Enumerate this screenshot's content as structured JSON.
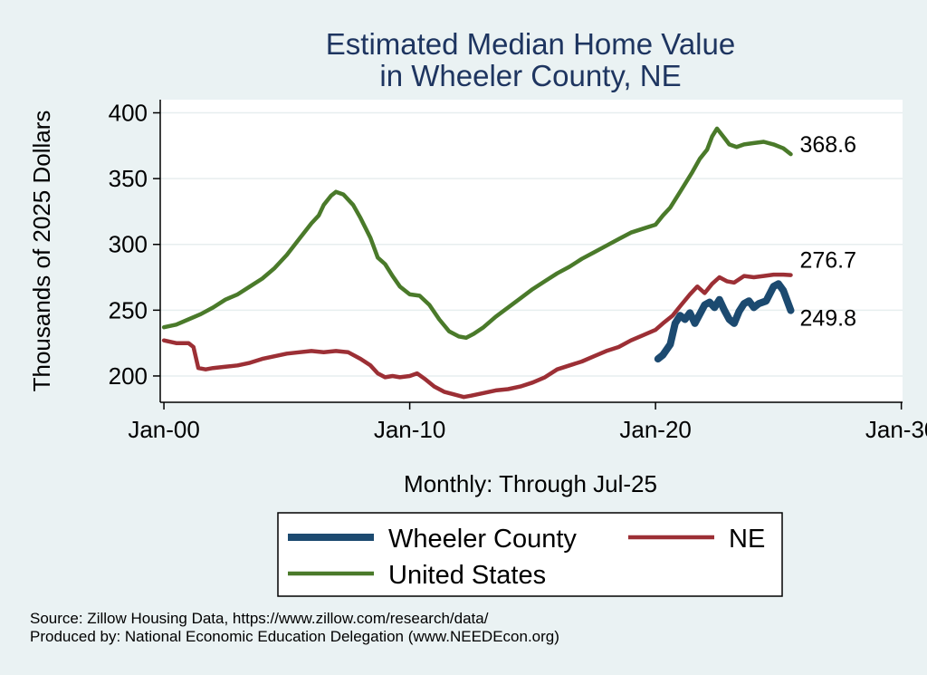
{
  "chart_data": {
    "type": "line",
    "title": [
      "Estimated Median Home Value",
      "in Wheeler County, NE"
    ],
    "ylabel": "Thousands of 2025 Dollars",
    "xlabel": "Monthly: Through Jul-25",
    "ylim": [
      180,
      410
    ],
    "xlim": [
      1999.85,
      2030.05
    ],
    "yticks": [
      200,
      250,
      300,
      350,
      400
    ],
    "xticks": [
      {
        "value": 2000,
        "label": "Jan-00"
      },
      {
        "value": 2010,
        "label": "Jan-10"
      },
      {
        "value": 2020,
        "label": "Jan-20"
      },
      {
        "value": 2030,
        "label": "Jan-30"
      }
    ],
    "grid": true,
    "legend_position": "bottom",
    "series": [
      {
        "name": "United States",
        "color": "#4a7a2a",
        "width": 4.5,
        "end_label": "368.6",
        "points": [
          [
            2000.0,
            237
          ],
          [
            2000.5,
            239
          ],
          [
            2001.0,
            243
          ],
          [
            2001.5,
            247
          ],
          [
            2002.0,
            252
          ],
          [
            2002.5,
            258
          ],
          [
            2003.0,
            262
          ],
          [
            2003.5,
            268
          ],
          [
            2004.0,
            274
          ],
          [
            2004.5,
            282
          ],
          [
            2005.0,
            292
          ],
          [
            2005.5,
            304
          ],
          [
            2006.0,
            316
          ],
          [
            2006.3,
            322
          ],
          [
            2006.5,
            330
          ],
          [
            2006.8,
            337
          ],
          [
            2007.0,
            340
          ],
          [
            2007.3,
            338
          ],
          [
            2007.7,
            330
          ],
          [
            2008.0,
            320
          ],
          [
            2008.4,
            305
          ],
          [
            2008.7,
            290
          ],
          [
            2009.0,
            285
          ],
          [
            2009.3,
            276
          ],
          [
            2009.6,
            268
          ],
          [
            2010.0,
            262
          ],
          [
            2010.4,
            261
          ],
          [
            2010.8,
            254
          ],
          [
            2011.2,
            243
          ],
          [
            2011.6,
            234
          ],
          [
            2012.0,
            230
          ],
          [
            2012.3,
            229
          ],
          [
            2012.6,
            232
          ],
          [
            2013.0,
            237
          ],
          [
            2013.5,
            245
          ],
          [
            2014.0,
            252
          ],
          [
            2014.5,
            259
          ],
          [
            2015.0,
            266
          ],
          [
            2015.5,
            272
          ],
          [
            2016.0,
            278
          ],
          [
            2016.5,
            283
          ],
          [
            2017.0,
            289
          ],
          [
            2017.5,
            294
          ],
          [
            2018.0,
            299
          ],
          [
            2018.5,
            304
          ],
          [
            2019.0,
            309
          ],
          [
            2019.5,
            312
          ],
          [
            2020.0,
            315
          ],
          [
            2020.3,
            322
          ],
          [
            2020.6,
            328
          ],
          [
            2021.0,
            340
          ],
          [
            2021.5,
            355
          ],
          [
            2021.8,
            365
          ],
          [
            2022.1,
            372
          ],
          [
            2022.3,
            382
          ],
          [
            2022.5,
            388
          ],
          [
            2022.8,
            381
          ],
          [
            2023.0,
            376
          ],
          [
            2023.3,
            374
          ],
          [
            2023.6,
            376
          ],
          [
            2024.0,
            377
          ],
          [
            2024.4,
            378
          ],
          [
            2024.8,
            376
          ],
          [
            2025.2,
            373
          ],
          [
            2025.5,
            368.6
          ]
        ]
      },
      {
        "name": "NE",
        "color": "#9c2f35",
        "width": 4.5,
        "end_label": "276.7",
        "points": [
          [
            2000.0,
            227
          ],
          [
            2000.5,
            225
          ],
          [
            2001.0,
            225
          ],
          [
            2001.2,
            222
          ],
          [
            2001.4,
            206
          ],
          [
            2001.7,
            205
          ],
          [
            2002.0,
            206
          ],
          [
            2002.5,
            207
          ],
          [
            2003.0,
            208
          ],
          [
            2003.5,
            210
          ],
          [
            2004.0,
            213
          ],
          [
            2004.5,
            215
          ],
          [
            2005.0,
            217
          ],
          [
            2005.5,
            218
          ],
          [
            2006.0,
            219
          ],
          [
            2006.5,
            218
          ],
          [
            2007.0,
            219
          ],
          [
            2007.5,
            218
          ],
          [
            2008.0,
            213
          ],
          [
            2008.4,
            208
          ],
          [
            2008.7,
            202
          ],
          [
            2009.0,
            199
          ],
          [
            2009.3,
            200
          ],
          [
            2009.6,
            199
          ],
          [
            2010.0,
            200
          ],
          [
            2010.3,
            202
          ],
          [
            2010.6,
            198
          ],
          [
            2011.0,
            192
          ],
          [
            2011.4,
            188
          ],
          [
            2011.8,
            186
          ],
          [
            2012.2,
            184
          ],
          [
            2012.5,
            185
          ],
          [
            2013.0,
            187
          ],
          [
            2013.5,
            189
          ],
          [
            2014.0,
            190
          ],
          [
            2014.5,
            192
          ],
          [
            2015.0,
            195
          ],
          [
            2015.5,
            199
          ],
          [
            2016.0,
            205
          ],
          [
            2016.5,
            208
          ],
          [
            2017.0,
            211
          ],
          [
            2017.5,
            215
          ],
          [
            2018.0,
            219
          ],
          [
            2018.5,
            222
          ],
          [
            2019.0,
            227
          ],
          [
            2019.5,
            231
          ],
          [
            2020.0,
            235
          ],
          [
            2020.3,
            240
          ],
          [
            2020.7,
            246
          ],
          [
            2021.0,
            253
          ],
          [
            2021.4,
            262
          ],
          [
            2021.7,
            268
          ],
          [
            2022.0,
            263
          ],
          [
            2022.3,
            270
          ],
          [
            2022.6,
            275
          ],
          [
            2022.9,
            272
          ],
          [
            2023.2,
            271
          ],
          [
            2023.6,
            276
          ],
          [
            2024.0,
            275
          ],
          [
            2024.4,
            276
          ],
          [
            2024.8,
            277
          ],
          [
            2025.2,
            277
          ],
          [
            2025.5,
            276.7
          ]
        ]
      },
      {
        "name": "Wheeler County",
        "color": "#1c4a70",
        "width": 8,
        "end_label": "249.8",
        "points": [
          [
            2020.1,
            213
          ],
          [
            2020.3,
            216
          ],
          [
            2020.6,
            224
          ],
          [
            2020.8,
            240
          ],
          [
            2021.0,
            246
          ],
          [
            2021.2,
            243
          ],
          [
            2021.4,
            248
          ],
          [
            2021.6,
            240
          ],
          [
            2021.8,
            247
          ],
          [
            2022.0,
            254
          ],
          [
            2022.2,
            256
          ],
          [
            2022.4,
            252
          ],
          [
            2022.6,
            258
          ],
          [
            2022.8,
            250
          ],
          [
            2023.0,
            243
          ],
          [
            2023.2,
            240
          ],
          [
            2023.4,
            249
          ],
          [
            2023.6,
            255
          ],
          [
            2023.8,
            257
          ],
          [
            2024.0,
            252
          ],
          [
            2024.2,
            255
          ],
          [
            2024.5,
            257
          ],
          [
            2024.8,
            268
          ],
          [
            2025.0,
            270
          ],
          [
            2025.2,
            265
          ],
          [
            2025.5,
            249.8
          ]
        ]
      }
    ]
  },
  "legend": {
    "items": [
      {
        "label": "Wheeler County",
        "color": "#1c4a70"
      },
      {
        "label": "NE",
        "color": "#9c2f35"
      },
      {
        "label": "United States",
        "color": "#4a7a2a"
      }
    ]
  },
  "footer": {
    "source": "Source: Zillow Housing Data, https://www.zillow.com/research/data/",
    "produced": "Produced by: National Economic Education Delegation (www.NEEDEcon.org)"
  }
}
